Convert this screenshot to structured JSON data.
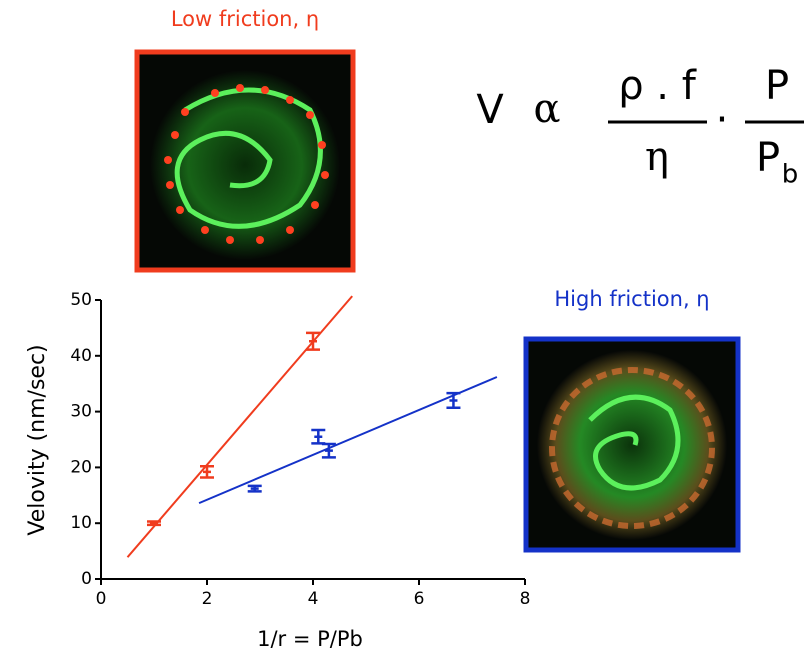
{
  "chart_data": {
    "type": "scatter",
    "ylabel": "Velovity (nm/sec)",
    "xlabel": "1/r = P/Pb",
    "xlim": [
      0,
      8
    ],
    "xticks": [
      0,
      2,
      4,
      6,
      8
    ],
    "ylim": [
      0,
      50
    ],
    "yticks": [
      0,
      10,
      20,
      30,
      40,
      50
    ],
    "series": [
      {
        "color": "#f03c1e",
        "x": [
          1,
          2,
          4
        ],
        "values": [
          10,
          19.2,
          42.6
        ],
        "errors": [
          0.3,
          1,
          1.5
        ]
      },
      {
        "color": "#1432c8",
        "x": [
          2.9,
          4.1,
          4.3,
          6.65
        ],
        "values": [
          16.2,
          25.5,
          23,
          32
        ],
        "errors": [
          0.5,
          1.2,
          1.2,
          1.3
        ]
      }
    ],
    "fits": [
      {
        "color": "#f03c1e",
        "x": [
          0.5,
          4.74
        ],
        "values": [
          3.9,
          50.7
        ]
      },
      {
        "color": "#1432c8",
        "x": [
          1.85,
          7.47
        ],
        "values": [
          13.6,
          36.2
        ]
      }
    ]
  },
  "images": [
    {
      "label": "Low friction, η",
      "color": "#f03c1e"
    },
    {
      "label": "High friction, η",
      "color": "#1432c8"
    }
  ],
  "formula": {
    "lhs": "V",
    "relation": "α",
    "numerator1": "ρ . f",
    "denominator1": "η",
    "operator": "·",
    "numerator2": "P",
    "denominator2": "P",
    "denominator2_sub": "b"
  }
}
